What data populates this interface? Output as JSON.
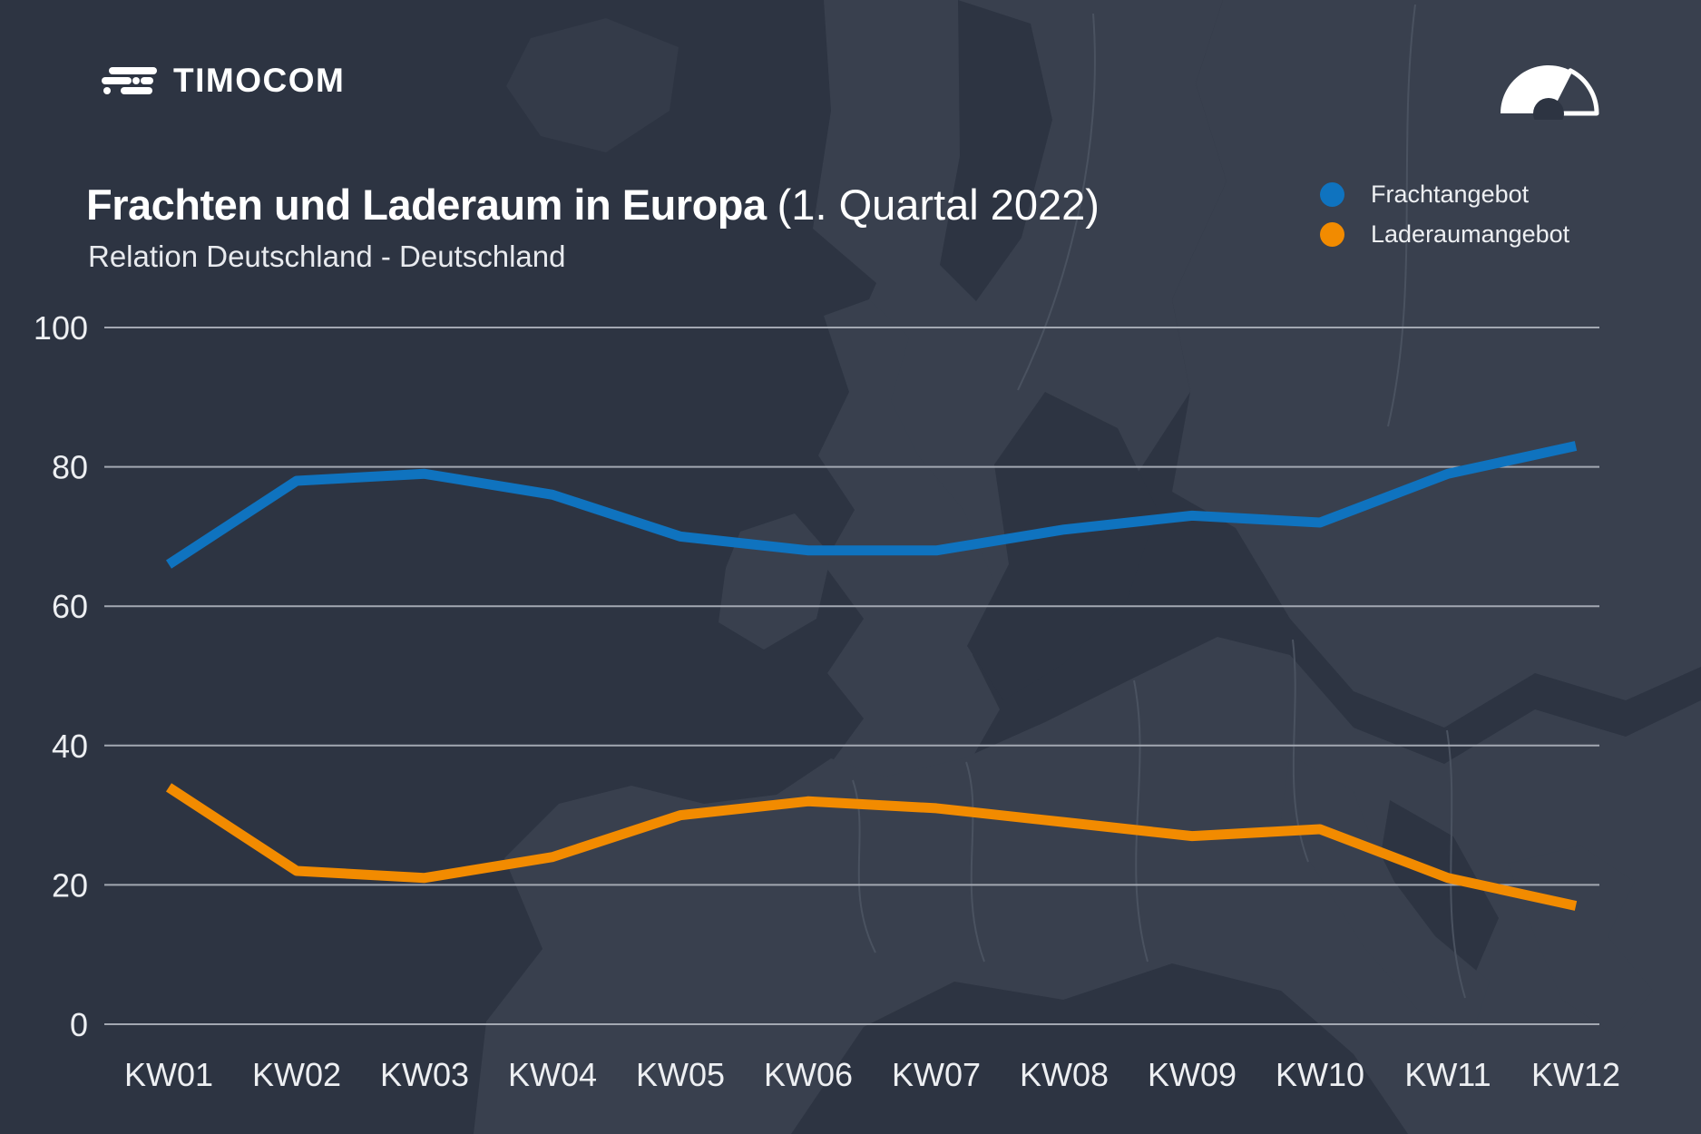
{
  "header": {
    "brand": "TIMOCOM",
    "title": "Frachten und Laderaum in Europa",
    "title_suffix": "(1. Quartal 2022)",
    "subtitle": "Relation Deutschland - Deutschland"
  },
  "legend": [
    {
      "label": "Frachtangebot",
      "color": "#0F73BF"
    },
    {
      "label": "Laderaumangebot",
      "color": "#F28B00"
    }
  ],
  "icons": {
    "logo_icon": "timocom-motion-lines",
    "top_right_icon": "speedometer-gauge"
  },
  "colors": {
    "background": "#2D3442",
    "map_land": "#39404E",
    "map_border": "#4A5260",
    "gridline": "#A3A8B2",
    "text": "#EDEFF2",
    "series_blue": "#0F73BF",
    "series_orange": "#F28B00"
  },
  "chart_data": {
    "type": "line",
    "title": "Frachten und Laderaum in Europa (1. Quartal 2022)",
    "subtitle": "Relation Deutschland - Deutschland",
    "categories": [
      "KW01",
      "KW02",
      "KW03",
      "KW04",
      "KW05",
      "KW06",
      "KW07",
      "KW08",
      "KW09",
      "KW10",
      "KW11",
      "KW12"
    ],
    "series": [
      {
        "name": "Frachtangebot",
        "color": "#0F73BF",
        "values": [
          66,
          78,
          79,
          76,
          70,
          68,
          68,
          71,
          73,
          72,
          79,
          83
        ]
      },
      {
        "name": "Laderaumangebot",
        "color": "#F28B00",
        "values": [
          34,
          22,
          21,
          24,
          30,
          32,
          31,
          29,
          27,
          28,
          21,
          17
        ]
      }
    ],
    "ylim": [
      0,
      100
    ],
    "yticks": [
      0,
      20,
      40,
      60,
      80,
      100
    ],
    "xlabel": "",
    "ylabel": "",
    "grid": "horizontal",
    "legend_position": "top-right"
  }
}
